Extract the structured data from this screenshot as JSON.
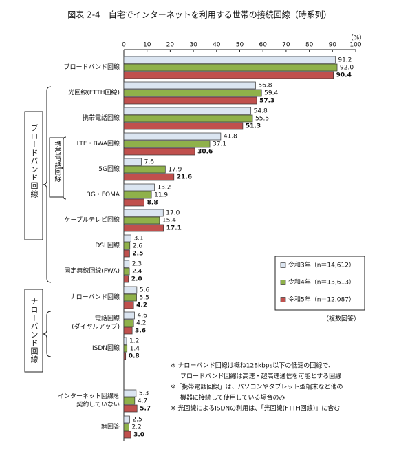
{
  "chart_data": {
    "type": "grouped-hbar",
    "title": "図表 2-4　自宅でインターネットを利用する世帯の接続回線（時系列）",
    "unit": "（%）",
    "categories": [
      "ブロードバンド回線",
      "光回線(FTTH回線)",
      "携帯電話回線",
      "LTE・BWA回線",
      "5G回線",
      "3G・FOMA",
      "ケーブルテレビ回線",
      "DSL回線",
      "固定無線回線(FWA)",
      "ナローバンド回線",
      "電話回線\n(ダイヤルアップ)",
      "ISDN回線",
      "インターネット回線を\n契約していない",
      "無回答"
    ],
    "series": [
      {
        "name": "令和3年（n＝14,612）",
        "color": "#dbe5f1",
        "values": [
          91.2,
          56.8,
          54.8,
          41.8,
          7.6,
          13.2,
          17.0,
          3.1,
          2.3,
          5.6,
          4.6,
          1.2,
          5.3,
          2.5
        ],
        "value_labels": [
          "91.2",
          "56.8",
          "54.8",
          "41.8",
          "7.6",
          "13.2",
          "17.0",
          "3.1",
          "2.3",
          "5.6",
          "4.6",
          "1.2",
          "5.3",
          "2.5"
        ]
      },
      {
        "name": "令和4年（n＝13,613）",
        "color": "#8fb14a",
        "values": [
          92.0,
          59.4,
          55.5,
          37.1,
          17.9,
          11.9,
          15.4,
          2.6,
          2.4,
          5.5,
          4.2,
          1.4,
          4.7,
          2.2
        ],
        "value_labels": [
          "92.0",
          "59.4",
          "55.5",
          "37.1",
          "17.9",
          "11.9",
          "15.4",
          "2.6",
          "2.4",
          "5.5",
          "4.2",
          "1.4",
          "4.7",
          "2.2"
        ]
      },
      {
        "name": "令和5年（n＝12,087）",
        "color": "#c0504d",
        "values": [
          90.4,
          57.3,
          51.3,
          30.6,
          21.6,
          8.8,
          17.1,
          2.5,
          2.0,
          4.2,
          3.6,
          0.8,
          5.7,
          3.0
        ],
        "value_labels": [
          "90.4",
          "57.3",
          "51.3",
          "30.6",
          "21.6",
          "8.8",
          "17.1",
          "2.5",
          "2.0",
          "4.2",
          "3.6",
          "0.8",
          "5.7",
          "3.0"
        ]
      }
    ],
    "xlim": [
      0,
      100
    ],
    "xticks": [
      0,
      10,
      20,
      30,
      40,
      50,
      60,
      70,
      80,
      90,
      100
    ],
    "groups": [
      "ブロードバンド回線",
      "携帯電話回線",
      "ナローバンド回線"
    ],
    "legend_note": "（複数回答）",
    "notes": [
      "※ ナローバンド回線は概ね128kbps以下の低速の回線で、",
      "ブロードバンド回線は高速・超高速通信を可能とする回線",
      "※「携帯電話回線」は、パソコンやタブレット型端末など他の",
      "機器に接続して使用している場合のみ",
      "※ 光回線によるISDNの利用は、「光回線(FTTH回線)」に含む"
    ],
    "legend_position": "lower-right"
  }
}
